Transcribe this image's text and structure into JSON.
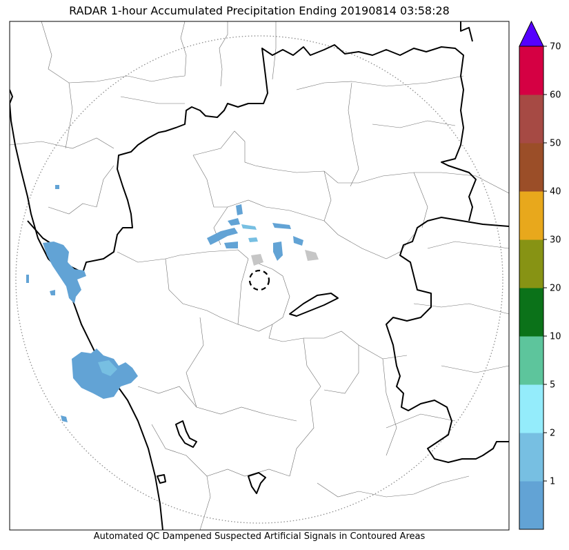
{
  "title": "RADAR 1-hour Accumulated Precipitation Ending 20190814 03:58:28",
  "caption": "Automated QC Dampened Suspected Artificial Signals in Contoured Areas",
  "colorbar": {
    "ticks": [
      "1",
      "2",
      "5",
      "10",
      "20",
      "30",
      "40",
      "50",
      "60",
      "70"
    ],
    "bins": [
      {
        "color": "#62a3d5"
      },
      {
        "color": "#77bfe2"
      },
      {
        "color": "#94ecfb"
      },
      {
        "color": "#5dc59c"
      },
      {
        "color": "#0b7219"
      },
      {
        "color": "#879314"
      },
      {
        "color": "#e8a81c"
      },
      {
        "color": "#9b4e28"
      },
      {
        "color": "#a64a44"
      },
      {
        "color": "#d50043"
      }
    ],
    "overflow_color": "#5500ff"
  },
  "colors": {
    "precip_light": "#62a3d5",
    "precip_medium": "#77bfe2",
    "suspect_gray": "#c6c6c6",
    "range_ring": "#8a8a8a"
  }
}
